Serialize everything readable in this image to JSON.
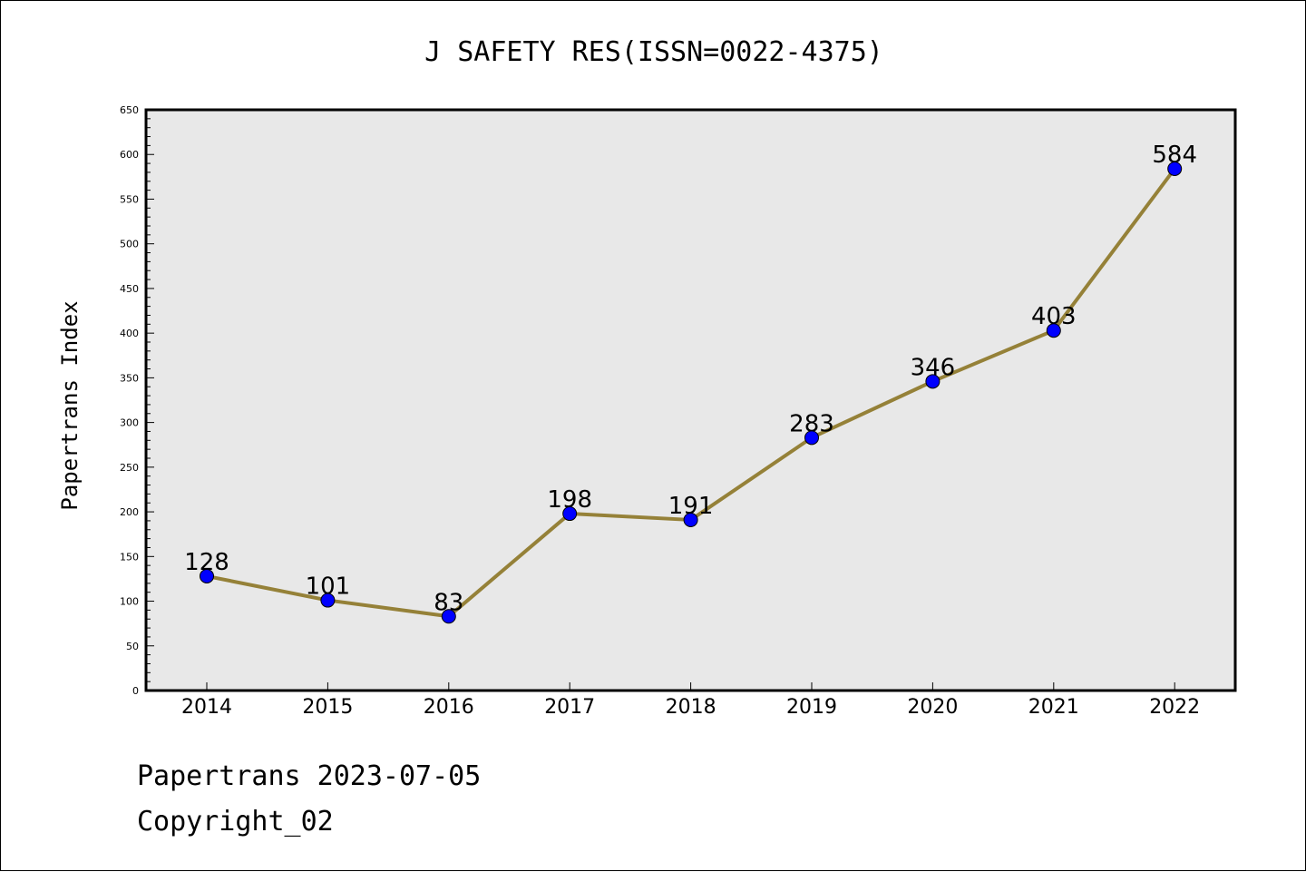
{
  "chart_data": {
    "type": "line",
    "title": "J SAFETY RES(ISSN=0022-4375)",
    "xlabel": "",
    "ylabel": "Papertrans Index",
    "categories": [
      "2014",
      "2015",
      "2016",
      "2017",
      "2018",
      "2019",
      "2020",
      "2021",
      "2022"
    ],
    "series": [
      {
        "values": [
          128,
          101,
          83,
          198,
          191,
          283,
          346,
          403,
          584
        ]
      }
    ],
    "ylim": [
      0,
      650
    ],
    "yticks": [
      0,
      50,
      100,
      150,
      200,
      250,
      300,
      350,
      400,
      450,
      500,
      550,
      600,
      650
    ],
    "line_color": "#958138",
    "marker_color": "#0000ff",
    "plot_background": "#e8e8e8",
    "grid": false,
    "legend": "none"
  },
  "footer": {
    "line1": "Papertrans 2023-07-05",
    "line2": "Copyright_02"
  }
}
